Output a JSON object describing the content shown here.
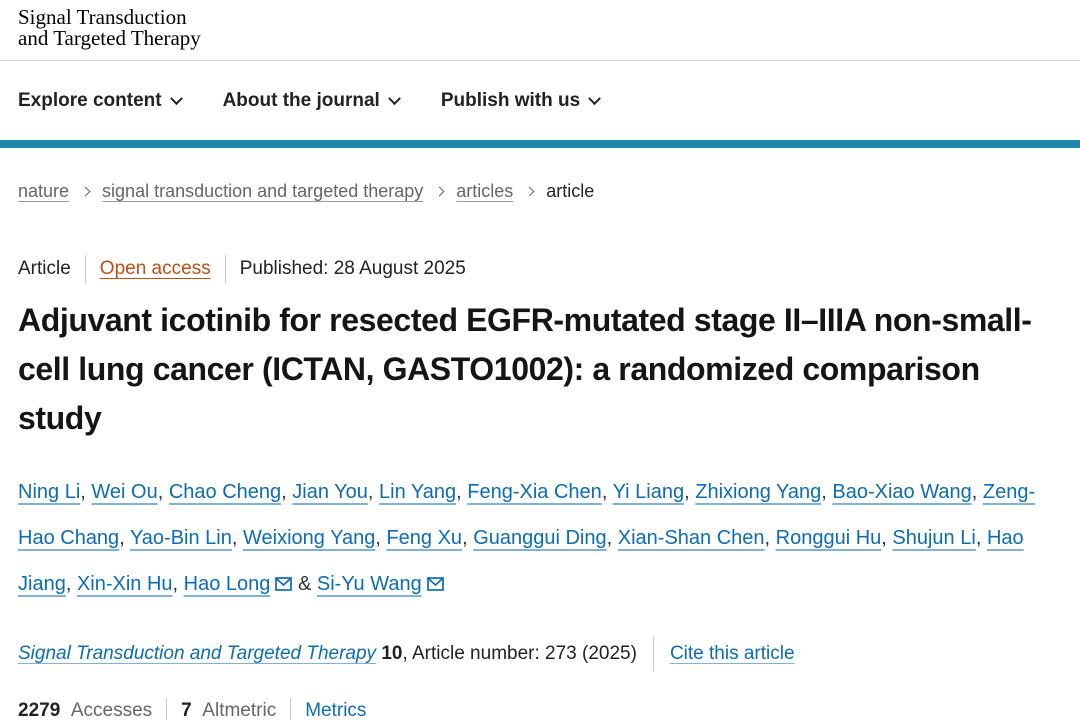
{
  "colors": {
    "accent_teal": "#1f89a8",
    "link_blue": "#0d6cb3",
    "link_underline": "#7fb2d9",
    "open_access_orange": "#bf4e16",
    "text_dark": "#222222",
    "text_gray": "#666666"
  },
  "header": {
    "logo_line1": "Signal Transduction",
    "logo_line2": "and Targeted Therapy",
    "nav": [
      {
        "label": "Explore content"
      },
      {
        "label": "About the journal"
      },
      {
        "label": "Publish with us"
      }
    ]
  },
  "breadcrumb": {
    "items": [
      {
        "label": "nature",
        "link": true
      },
      {
        "label": "signal transduction and targeted therapy",
        "link": true
      },
      {
        "label": "articles",
        "link": true
      },
      {
        "label": "article",
        "link": false
      }
    ]
  },
  "article": {
    "type_label": "Article",
    "access_label": "Open access",
    "published_label": "Published: 28 August 2025",
    "title": "Adjuvant icotinib for resected EGFR-mutated stage II–IIIA non-small-cell lung cancer (ICTAN, GASTO1002): a randomized comparison study",
    "authors": [
      {
        "name": "Ning Li",
        "corresponding": false
      },
      {
        "name": "Wei Ou",
        "corresponding": false
      },
      {
        "name": "Chao Cheng",
        "corresponding": false
      },
      {
        "name": "Jian You",
        "corresponding": false
      },
      {
        "name": "Lin Yang",
        "corresponding": false
      },
      {
        "name": "Feng-Xia Chen",
        "corresponding": false
      },
      {
        "name": "Yi Liang",
        "corresponding": false
      },
      {
        "name": "Zhixiong Yang",
        "corresponding": false
      },
      {
        "name": "Bao-Xiao Wang",
        "corresponding": false
      },
      {
        "name": "Zeng-Hao Chang",
        "corresponding": false
      },
      {
        "name": "Yao-Bin Lin",
        "corresponding": false
      },
      {
        "name": "Weixiong Yang",
        "corresponding": false
      },
      {
        "name": "Feng Xu",
        "corresponding": false
      },
      {
        "name": "Guanggui Ding",
        "corresponding": false
      },
      {
        "name": "Xian-Shan Chen",
        "corresponding": false
      },
      {
        "name": "Ronggui Hu",
        "corresponding": false
      },
      {
        "name": "Shujun Li",
        "corresponding": false
      },
      {
        "name": "Hao Jiang",
        "corresponding": false
      },
      {
        "name": "Xin-Xin Hu",
        "corresponding": false
      },
      {
        "name": "Hao Long",
        "corresponding": true
      },
      {
        "name": "Si-Yu Wang",
        "corresponding": true
      }
    ],
    "separator_comma": ", ",
    "separator_amp": " & "
  },
  "citation": {
    "journal": "Signal Transduction and Targeted Therapy",
    "volume": "10",
    "rest": ", Article number: 273 (2025)",
    "cite_link": "Cite this article"
  },
  "metrics": {
    "accesses_value": "2279",
    "accesses_label": "Accesses",
    "altmetric_value": "7",
    "altmetric_label": "Altmetric",
    "metrics_link": "Metrics"
  }
}
